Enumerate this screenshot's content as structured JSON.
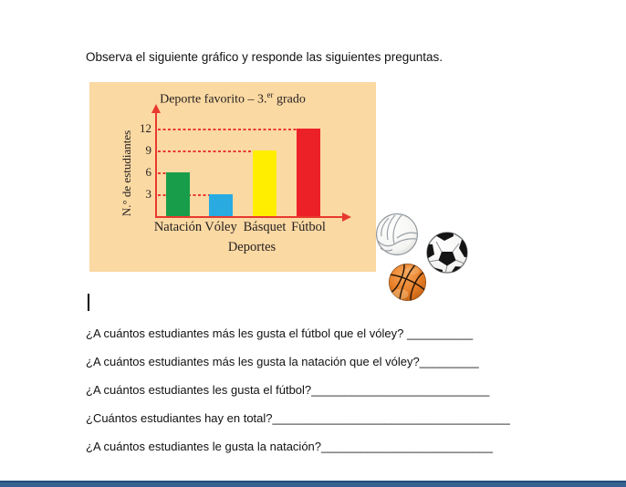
{
  "page": {
    "intro": "Observa el siguiente gráfico y responde las siguientes preguntas."
  },
  "chart_data": {
    "type": "bar",
    "title": "Deporte favorito – 3.er grado",
    "title_parts": {
      "prefix": "Deporte favorito – 3.",
      "superscript": "er",
      "suffix": " grado"
    },
    "xlabel": "Deportes",
    "ylabel": "N.° de estudiantes",
    "categories": [
      "Natación",
      "Vóley",
      "Básquet",
      "Fútbol"
    ],
    "values": [
      6,
      3,
      9,
      12
    ],
    "bar_colors": [
      "#189e4a",
      "#29abe2",
      "#ffee00",
      "#ec2027"
    ],
    "yticks": [
      3,
      6,
      9,
      12
    ],
    "ylim": [
      0,
      13
    ],
    "grid": "horizontal red dashed lines from y-axis to each bar top",
    "gridline_color": "#e8392e",
    "axis_color": "#e8392e",
    "background": "#fbd9a3",
    "legend": "none"
  },
  "images": {
    "balls": [
      "volleyball",
      "soccer-ball",
      "basketball"
    ]
  },
  "questions": [
    {
      "text": "¿A cuántos estudiantes más les gusta el fútbol que el vóley?",
      "blank": " __________"
    },
    {
      "text": "¿A cuántos estudiantes más les gusta la natación que el vóley?",
      "blank": "_________"
    },
    {
      "text": "¿A cuántos estudiantes les gusta el fútbol?",
      "blank": "___________________________"
    },
    {
      "text": "¿Cuántos estudiantes hay en total?",
      "blank": "____________________________________"
    },
    {
      "text": "¿A cuántos estudiantes le gusta la natación?",
      "blank": "__________________________"
    }
  ]
}
